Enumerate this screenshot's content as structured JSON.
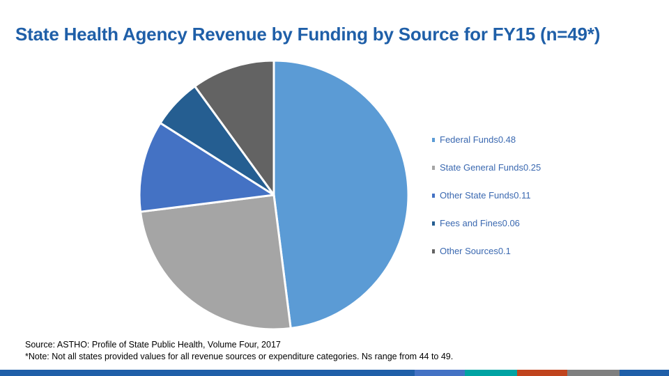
{
  "title": "State Health Agency Revenue by Funding by Source for FY15 (n=49*)",
  "chart_data": {
    "type": "pie",
    "title": "State Health Agency Revenue by Funding by Source for FY15 (n=49*)",
    "slices": [
      {
        "label": "Federal Funds",
        "value": 0.48,
        "legend_text": "Federal Funds0.48",
        "color": "#5b9bd5"
      },
      {
        "label": "State General Funds",
        "value": 0.25,
        "legend_text": "State General Funds0.25",
        "color": "#a5a5a5"
      },
      {
        "label": "Other State Funds",
        "value": 0.11,
        "legend_text": "Other State Funds0.11",
        "color": "#4472c4"
      },
      {
        "label": "Fees and Fines",
        "value": 0.06,
        "legend_text": "Fees and Fines0.06",
        "color": "#255e91"
      },
      {
        "label": "Other Sources",
        "value": 0.1,
        "legend_text": "Other Sources0.1",
        "color": "#636363"
      }
    ],
    "legend_position": "right"
  },
  "notes": {
    "source": "Source: ASTHO: Profile of State Public Health, Volume Four, 2017",
    "note": "*Note: Not all states provided values for all revenue sources or expenditure categories. Ns range from 44 to 49."
  },
  "footer_colors": [
    "#1f5fa8",
    "#4472c4",
    "#00a3a3",
    "#c0441d",
    "#7f7f7f",
    "#1f5fa8"
  ]
}
